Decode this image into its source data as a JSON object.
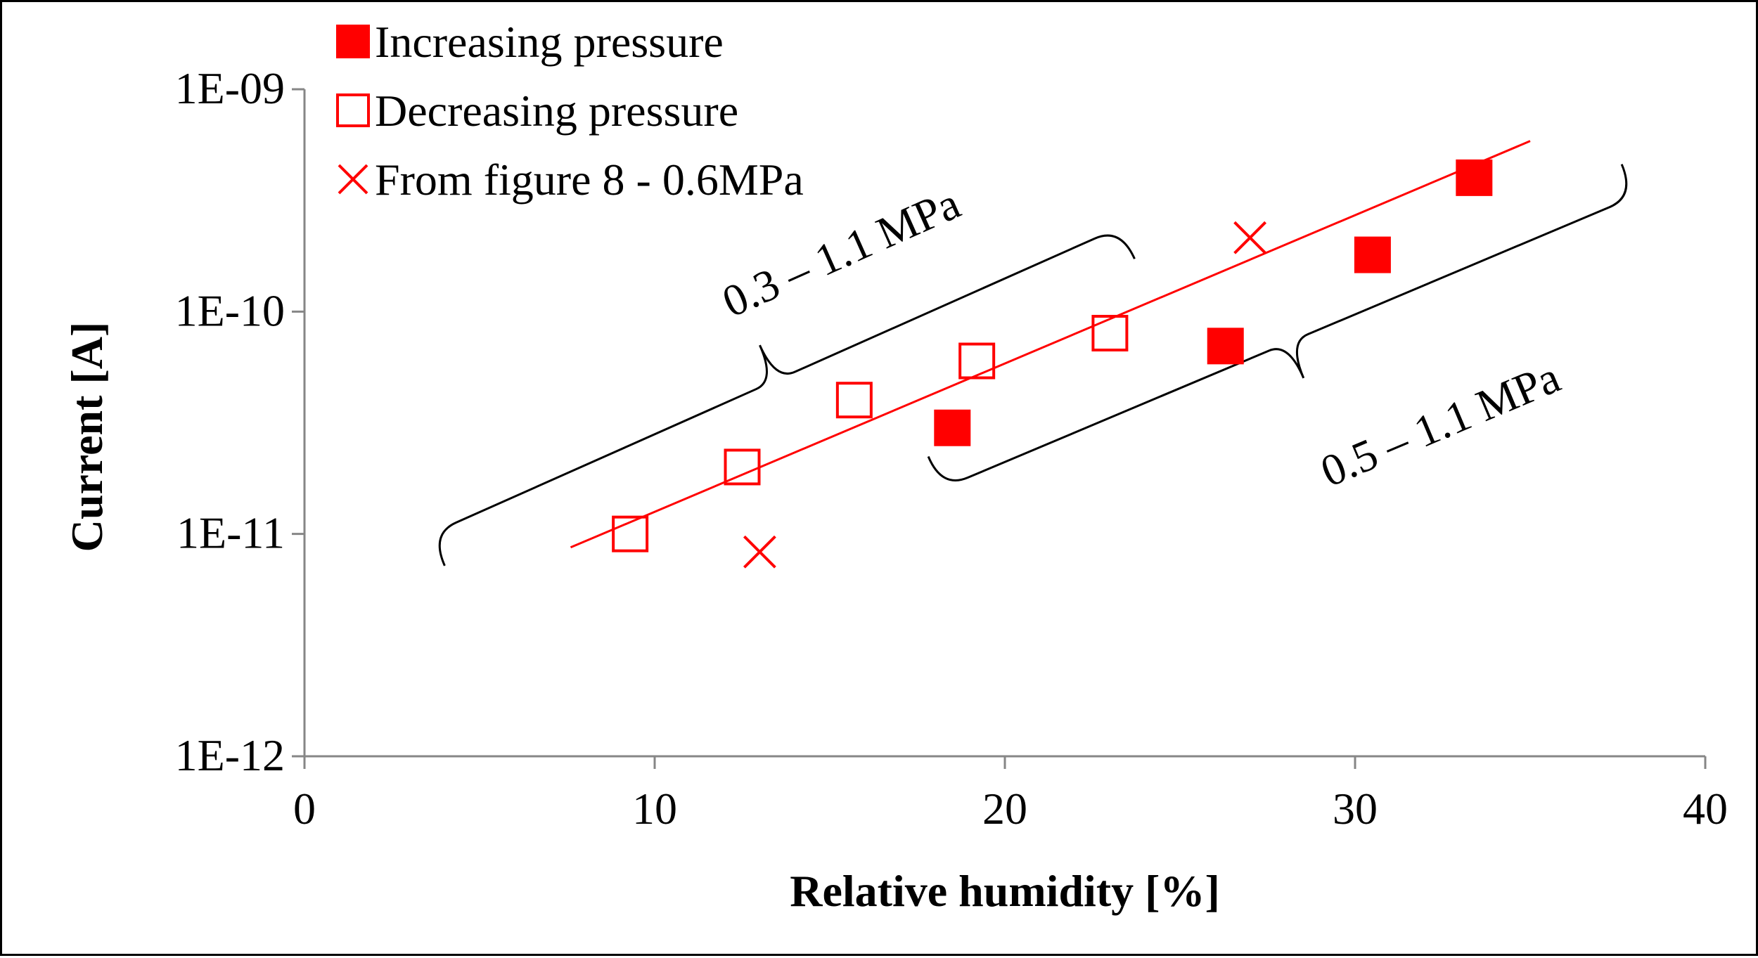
{
  "chart_data": {
    "type": "scatter",
    "title": "",
    "xlabel": "Relative humidity [%]",
    "ylabel": "Current [A]",
    "xlim": [
      0,
      40
    ],
    "ylim": [
      1e-12,
      1e-09
    ],
    "y_scale": "log",
    "x_ticks": [
      0,
      10,
      20,
      30,
      40
    ],
    "x_tick_labels": [
      "0",
      "10",
      "20",
      "30",
      "40"
    ],
    "y_ticks": [
      1e-12,
      1e-11,
      1e-10,
      1e-09
    ],
    "y_tick_labels": [
      "1E-12",
      "1E-11",
      "1E-10",
      "1E-09"
    ],
    "grid": false,
    "legend_position": "top-left",
    "series": [
      {
        "name": "Increasing pressure",
        "marker": "filled-square",
        "color": "#ff0000",
        "points": [
          {
            "x": 18.5,
            "y": 3e-11
          },
          {
            "x": 26.3,
            "y": 7e-11
          },
          {
            "x": 30.5,
            "y": 1.8e-10
          },
          {
            "x": 33.4,
            "y": 4e-10
          }
        ]
      },
      {
        "name": "Decreasing pressure",
        "marker": "open-square",
        "color": "#ff0000",
        "points": [
          {
            "x": 9.3,
            "y": 1e-11
          },
          {
            "x": 12.5,
            "y": 2e-11
          },
          {
            "x": 15.7,
            "y": 4e-11
          },
          {
            "x": 19.2,
            "y": 6e-11
          },
          {
            "x": 23.0,
            "y": 8e-11
          }
        ]
      },
      {
        "name": "From figure 8 -  0.6MPa",
        "marker": "x",
        "color": "#ff0000",
        "points": [
          {
            "x": 13.0,
            "y": 8.3e-12
          },
          {
            "x": 27.0,
            "y": 2.15e-10
          }
        ]
      }
    ],
    "trendline": {
      "color": "#ff0000",
      "points": [
        {
          "x": 7.6,
          "y": 8.7e-12
        },
        {
          "x": 35.0,
          "y": 5.85e-10
        }
      ]
    },
    "annotations": [
      {
        "text": "0.3 – 1.1 MPa",
        "anchor": {
          "x": 15.5,
          "y": 1.6e-10
        },
        "bracket": [
          {
            "x": 3.6,
            "y": 1e-11
          },
          {
            "x": 23.3,
            "y": 2.4e-10
          }
        ]
      },
      {
        "text": "0.5 – 1.1 MPa",
        "anchor": {
          "x": 32.6,
          "y": 2.7e-11
        },
        "bracket": [
          {
            "x": 18.2,
            "y": 1.6e-11
          },
          {
            "x": 38.0,
            "y": 3.3e-10
          }
        ]
      }
    ]
  }
}
